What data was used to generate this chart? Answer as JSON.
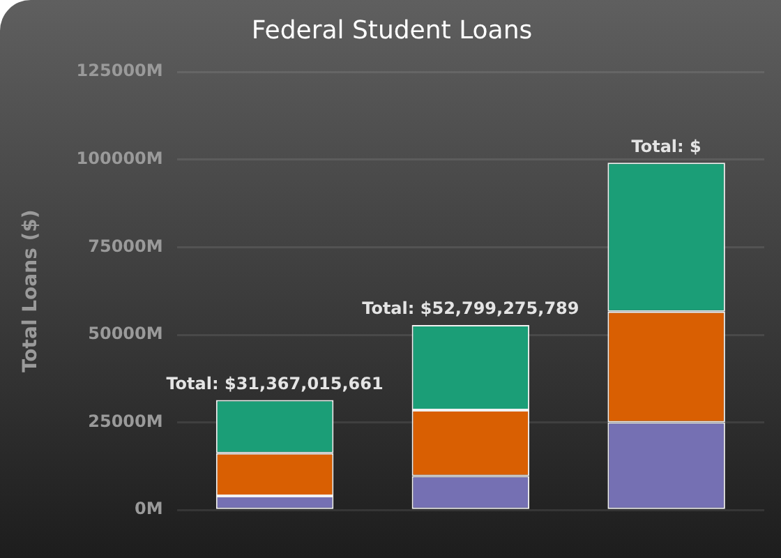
{
  "chart_data": {
    "type": "bar",
    "title": "Federal Student Loans",
    "ylabel": "Total Loans ($)",
    "categories": [
      null,
      null,
      null
    ],
    "series": [
      {
        "color": "#7570b3",
        "values": [
          4000000000,
          9700000000,
          25000000000
        ]
      },
      {
        "color": "#d95f02",
        "values": [
          12200000000,
          18800000000,
          31600000000
        ]
      },
      {
        "color": "#1b9e77",
        "values": [
          15167015661,
          24299275789,
          42500000000
        ]
      }
    ],
    "stacked": true,
    "ylim": [
      0,
      125000000000
    ],
    "yticks": [
      {
        "value": 0,
        "label": "0M"
      },
      {
        "value": 25000000000,
        "label": "25000M"
      },
      {
        "value": 50000000000,
        "label": "50000M"
      },
      {
        "value": 75000000000,
        "label": "75000M"
      },
      {
        "value": 100000000000,
        "label": "100000M"
      },
      {
        "value": 125000000000,
        "label": "125000M"
      }
    ],
    "grid": "y",
    "legend": false,
    "totals": [
      "Total: $31,367,015,661",
      "Total: $52,799,275,789",
      "Total: $"
    ]
  }
}
